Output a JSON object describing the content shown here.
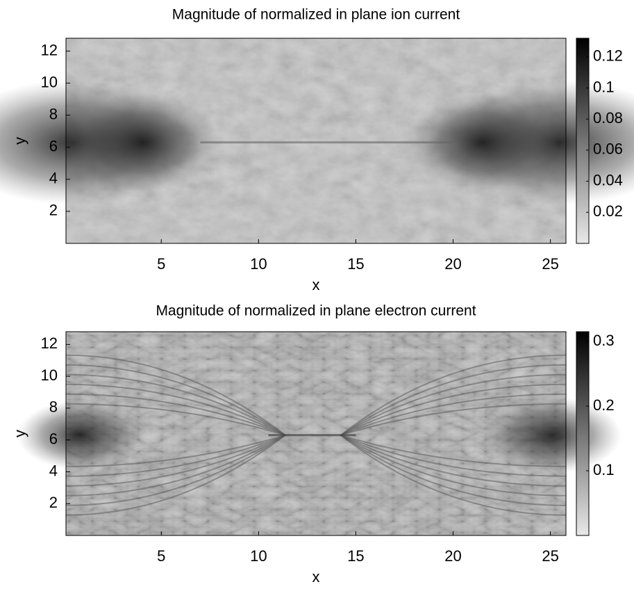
{
  "chart_data": [
    {
      "type": "heatmap",
      "title": "Magnitude of normalized in plane ion current",
      "x_label": "x",
      "y_label": "y",
      "xlim": [
        0.1,
        25.8
      ],
      "xticks": [
        5,
        10,
        15,
        20,
        25
      ],
      "ylim": [
        0,
        12.8
      ],
      "yticks": [
        2,
        4,
        6,
        8,
        10,
        12
      ],
      "colormap": "gray-reversed",
      "clim": [
        0,
        0.132
      ],
      "cticks": [
        0.02,
        0.04,
        0.06,
        0.08,
        0.1,
        0.12
      ]
    },
    {
      "type": "heatmap",
      "title": "Magnitude of normalized in plane electron current",
      "x_label": "x",
      "y_label": "y",
      "xlim": [
        0.1,
        25.8
      ],
      "xticks": [
        5,
        10,
        15,
        20,
        25
      ],
      "ylim": [
        0,
        12.8
      ],
      "yticks": [
        2,
        4,
        6,
        8,
        10,
        12
      ],
      "colormap": "gray-reversed",
      "clim": [
        0,
        0.315
      ],
      "cticks": [
        0.1,
        0.2,
        0.3
      ]
    }
  ]
}
